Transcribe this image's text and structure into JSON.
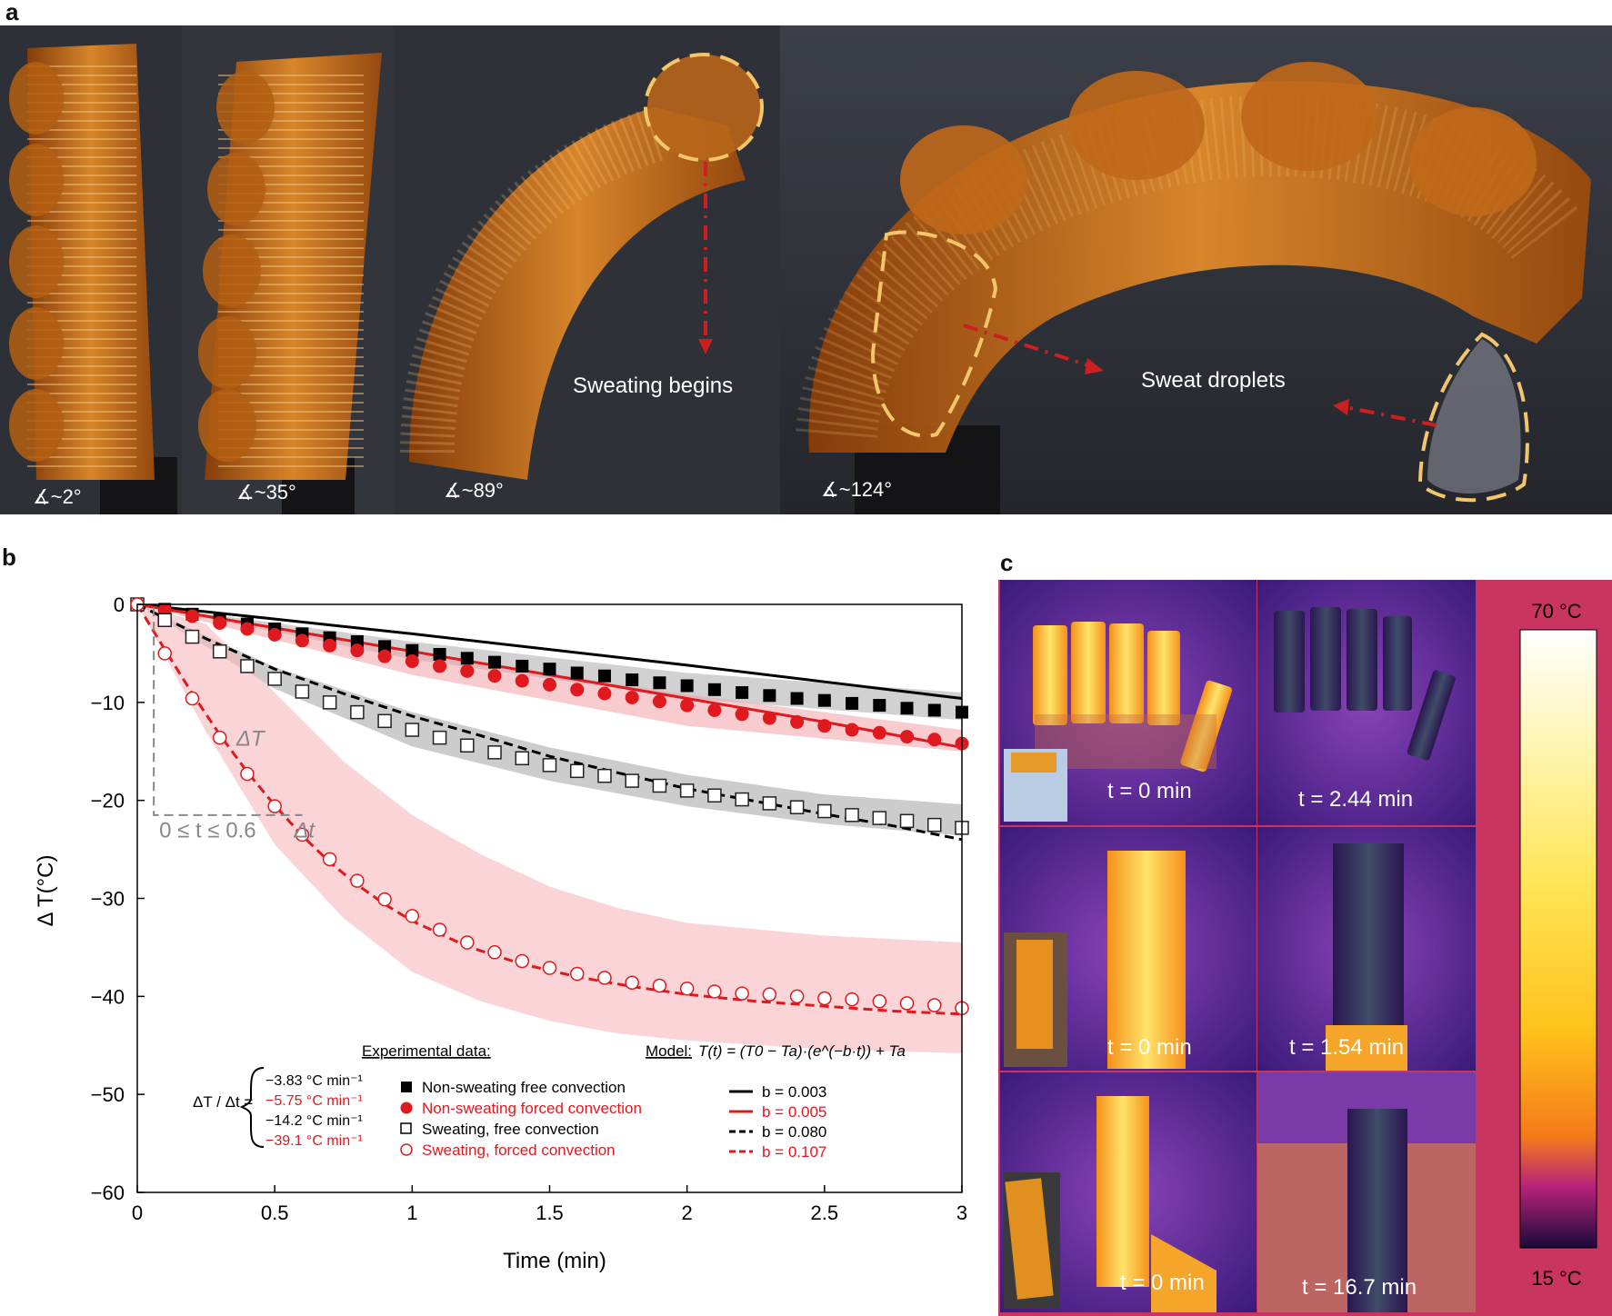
{
  "panel_a": {
    "letter": "a",
    "angles": [
      "∡~2°",
      "∡~35°",
      "∡~89°",
      "∡~124°"
    ],
    "annotations": [
      "Sweating begins",
      "Sweat droplets"
    ],
    "colors": {
      "actuator": "#c8701a",
      "background": "#2c2e36",
      "highlight": "#f3c66b",
      "arrow": "#cc1f1f"
    }
  },
  "panel_b": {
    "letter": "b"
  },
  "panel_c": {
    "letter": "c",
    "labels": [
      [
        "t = 0 min",
        "t = 2.44 min"
      ],
      [
        "t = 0 min",
        "t = 1.54 min"
      ],
      [
        "t = 0 min",
        "t = 16.7 min"
      ]
    ],
    "colorbar_max": "70 °C",
    "colorbar_min": "15 °C",
    "colors": {
      "frame": "#c93460",
      "cool": "#3b1a7a",
      "hot": "#ffd43a"
    }
  },
  "chart_data": {
    "type": "scatter",
    "xlabel": "Time (min)",
    "ylabel": "Δ T(°C)",
    "xlim": [
      0,
      3
    ],
    "ylim": [
      -60,
      0
    ],
    "xticks": [
      "0",
      "0.5",
      "1",
      "1.5",
      "2",
      "2.5",
      "3"
    ],
    "yticks": [
      "0",
      "−10",
      "−20",
      "−30",
      "−40",
      "−50",
      "−60"
    ],
    "grid": false,
    "legend_placement": "bottom-center",
    "experimental_header": "Experimental data:",
    "model_header": "Model:",
    "model_equation": "T(t) = (T0 − Ta)·(e^(−b·t)) + Ta",
    "inset_delta": "ΔT",
    "inset_range": "0 ≤ t ≤ 0.6",
    "inset_dt": "Δt",
    "rate_prefix": "ΔT / Δt =",
    "series": [
      {
        "name": "Non-sweating free convection",
        "color": "#000000",
        "marker": "filled-square",
        "rate": "−3.83 °C min⁻¹",
        "model_b": "b = 0.003",
        "x": [
          0,
          0.1,
          0.2,
          0.3,
          0.4,
          0.5,
          0.6,
          0.7,
          0.8,
          0.9,
          1.0,
          1.1,
          1.2,
          1.3,
          1.4,
          1.5,
          1.6,
          1.7,
          1.8,
          1.9,
          2.0,
          2.1,
          2.2,
          2.3,
          2.4,
          2.5,
          2.6,
          2.7,
          2.8,
          2.9,
          3.0
        ],
        "y": [
          0,
          -0.5,
          -1.0,
          -1.5,
          -2.0,
          -2.5,
          -3.0,
          -3.4,
          -3.8,
          -4.3,
          -4.7,
          -5.1,
          -5.5,
          -5.9,
          -6.3,
          -6.6,
          -7.0,
          -7.3,
          -7.7,
          -8.0,
          -8.3,
          -8.7,
          -9.0,
          -9.3,
          -9.6,
          -9.8,
          -10.1,
          -10.3,
          -10.6,
          -10.8,
          -11.0
        ],
        "band": [
          [
            0,
            0,
            0
          ],
          [
            1.0,
            -3.8,
            -5.6
          ],
          [
            2.0,
            -7.0,
            -9.6
          ],
          [
            3.0,
            -9.0,
            -11.8
          ]
        ],
        "model": [
          [
            0,
            0
          ],
          [
            0.5,
            -1.5
          ],
          [
            1.0,
            -3.0
          ],
          [
            1.5,
            -4.6
          ],
          [
            2.0,
            -6.2
          ],
          [
            2.5,
            -7.9
          ],
          [
            3.0,
            -9.6
          ]
        ]
      },
      {
        "name": "Non-sweating forced convection",
        "color": "#e0191e",
        "marker": "filled-circle",
        "rate": "−5.75 °C min⁻¹",
        "model_b": "b = 0.005",
        "x": [
          0,
          0.1,
          0.2,
          0.3,
          0.4,
          0.5,
          0.6,
          0.7,
          0.8,
          0.9,
          1.0,
          1.1,
          1.2,
          1.3,
          1.4,
          1.5,
          1.6,
          1.7,
          1.8,
          1.9,
          2.0,
          2.1,
          2.2,
          2.3,
          2.4,
          2.5,
          2.6,
          2.7,
          2.8,
          2.9,
          3.0
        ],
        "y": [
          0,
          -0.6,
          -1.2,
          -1.9,
          -2.5,
          -3.1,
          -3.7,
          -4.2,
          -4.7,
          -5.3,
          -5.8,
          -6.3,
          -6.8,
          -7.3,
          -7.8,
          -8.2,
          -8.7,
          -9.1,
          -9.5,
          -9.9,
          -10.3,
          -10.8,
          -11.2,
          -11.6,
          -12.0,
          -12.4,
          -12.8,
          -13.1,
          -13.5,
          -13.8,
          -14.2
        ],
        "band": [
          [
            0,
            0,
            0
          ],
          [
            1.0,
            -5.0,
            -7.2
          ],
          [
            2.0,
            -9.2,
            -12.4
          ],
          [
            3.0,
            -12.8,
            -15.0
          ]
        ],
        "model": [
          [
            0,
            0
          ],
          [
            0.5,
            -2.4
          ],
          [
            1.0,
            -4.8
          ],
          [
            1.5,
            -7.2
          ],
          [
            2.0,
            -9.6
          ],
          [
            2.5,
            -12.0
          ],
          [
            3.0,
            -14.6
          ]
        ]
      },
      {
        "name": "Sweating, free convection",
        "color": "#000000",
        "marker": "open-square",
        "rate": "−14.2 °C min⁻¹",
        "model_b": "b = 0.080",
        "x": [
          0,
          0.1,
          0.2,
          0.3,
          0.4,
          0.5,
          0.6,
          0.7,
          0.8,
          0.9,
          1.0,
          1.1,
          1.2,
          1.3,
          1.4,
          1.5,
          1.6,
          1.7,
          1.8,
          1.9,
          2.0,
          2.1,
          2.2,
          2.3,
          2.4,
          2.5,
          2.6,
          2.7,
          2.8,
          2.9,
          3.0
        ],
        "y": [
          0,
          -1.6,
          -3.3,
          -4.8,
          -6.3,
          -7.6,
          -8.9,
          -10.0,
          -11.0,
          -11.9,
          -12.8,
          -13.6,
          -14.4,
          -15.1,
          -15.7,
          -16.4,
          -17.0,
          -17.5,
          -18.0,
          -18.5,
          -19.0,
          -19.5,
          -19.9,
          -20.3,
          -20.7,
          -21.1,
          -21.5,
          -21.8,
          -22.1,
          -22.5,
          -22.8
        ],
        "band": [
          [
            0,
            0,
            0
          ],
          [
            0.5,
            -6.4,
            -8.6
          ],
          [
            1.0,
            -11.0,
            -14.5
          ],
          [
            1.5,
            -14.6,
            -18.0
          ],
          [
            2.0,
            -17.4,
            -20.6
          ],
          [
            2.5,
            -19.4,
            -22.4
          ],
          [
            3.0,
            -20.4,
            -23.6
          ]
        ],
        "model": [
          [
            0,
            0
          ],
          [
            0.25,
            -3.5
          ],
          [
            0.5,
            -6.6
          ],
          [
            0.75,
            -9.1
          ],
          [
            1.0,
            -11.4
          ],
          [
            1.25,
            -13.4
          ],
          [
            1.5,
            -15.5
          ],
          [
            1.75,
            -17.2
          ],
          [
            2.0,
            -18.8
          ],
          [
            2.25,
            -20.1
          ],
          [
            2.5,
            -21.4
          ],
          [
            2.75,
            -22.6
          ],
          [
            3.0,
            -24.0
          ]
        ]
      },
      {
        "name": "Sweating, forced convection",
        "color": "#e0191e",
        "marker": "open-circle",
        "rate": "−39.1 °C min⁻¹",
        "model_b": "b = 0.107",
        "x": [
          0,
          0.1,
          0.2,
          0.3,
          0.4,
          0.5,
          0.6,
          0.7,
          0.8,
          0.9,
          1.0,
          1.1,
          1.2,
          1.3,
          1.4,
          1.5,
          1.6,
          1.7,
          1.8,
          1.9,
          2.0,
          2.1,
          2.2,
          2.3,
          2.4,
          2.5,
          2.6,
          2.7,
          2.8,
          2.9,
          3.0
        ],
        "y": [
          0,
          -5.0,
          -9.6,
          -13.6,
          -17.3,
          -20.6,
          -23.5,
          -26.0,
          -28.2,
          -30.1,
          -31.8,
          -33.2,
          -34.5,
          -35.5,
          -36.4,
          -37.1,
          -37.7,
          -38.1,
          -38.6,
          -38.9,
          -39.2,
          -39.5,
          -39.7,
          -39.8,
          -40.0,
          -40.2,
          -40.3,
          -40.5,
          -40.7,
          -40.9,
          -41.2
        ],
        "band": [
          [
            0,
            0,
            0
          ],
          [
            0.25,
            -2.0,
            -13.0
          ],
          [
            0.5,
            -9.0,
            -24.5
          ],
          [
            0.75,
            -16.0,
            -32.0
          ],
          [
            1.0,
            -21.5,
            -37.5
          ],
          [
            1.25,
            -25.5,
            -40.5
          ],
          [
            1.5,
            -28.8,
            -42.5
          ],
          [
            1.75,
            -31.0,
            -43.8
          ],
          [
            2.0,
            -32.5,
            -44.5
          ],
          [
            2.5,
            -33.8,
            -45.4
          ],
          [
            3.0,
            -34.5,
            -45.8
          ]
        ],
        "model": [
          [
            0,
            0
          ],
          [
            0.1,
            -4.6
          ],
          [
            0.2,
            -9.1
          ],
          [
            0.3,
            -13.3
          ],
          [
            0.4,
            -17.1
          ],
          [
            0.5,
            -20.5
          ],
          [
            0.6,
            -23.6
          ],
          [
            0.7,
            -26.3
          ],
          [
            0.8,
            -28.6
          ],
          [
            0.9,
            -30.6
          ],
          [
            1.0,
            -32.3
          ],
          [
            1.2,
            -34.9
          ],
          [
            1.4,
            -36.7
          ],
          [
            1.6,
            -38.0
          ],
          [
            1.8,
            -39.0
          ],
          [
            2.0,
            -39.8
          ],
          [
            2.25,
            -40.5
          ],
          [
            2.5,
            -41.0
          ],
          [
            2.75,
            -41.5
          ],
          [
            3.0,
            -41.8
          ]
        ]
      }
    ]
  }
}
